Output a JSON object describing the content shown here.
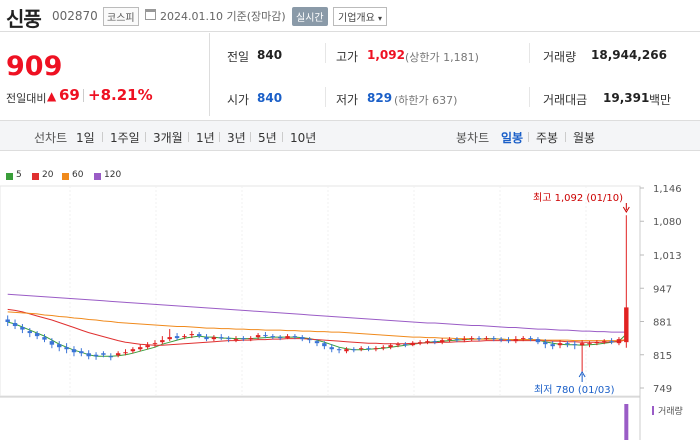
{
  "stock": {
    "name": "신풍",
    "code": "002870",
    "market": "코스피",
    "date_text": "2024.01.10 기준(장마감)",
    "realtime_label": "실시간",
    "overview_label": "기업개요",
    "price": "909",
    "change_label": "전일대비",
    "change_value": "69",
    "change_pct": "+8.21%"
  },
  "stats": {
    "prev_label": "전일",
    "prev_value": "840",
    "open_label": "시가",
    "open_value": "840",
    "high_label": "고가",
    "high_value": "1,092",
    "upper_limit": "(상한가 1,181)",
    "low_label": "저가",
    "low_value": "829",
    "lower_limit": "(하한가 637)",
    "volume_label": "거래량",
    "volume_value": "18,944,266",
    "amount_label": "거래대금",
    "amount_value": "19,391",
    "amount_unit": "백만"
  },
  "periods": {
    "line_label": "선차트",
    "line_items": [
      "1일",
      "1주일",
      "3개월",
      "1년",
      "3년",
      "5년",
      "10년"
    ],
    "candle_label": "봉차트",
    "candle_items": [
      "일봉",
      "주봉",
      "월봉"
    ],
    "active_candle": "일봉"
  },
  "legend": [
    {
      "label": "5",
      "color": "#3a9e3a"
    },
    {
      "label": "20",
      "color": "#e03030"
    },
    {
      "label": "60",
      "color": "#f08a1c"
    },
    {
      "label": "120",
      "color": "#9a5cc6"
    }
  ],
  "colors": {
    "up": "#e12222",
    "down": "#3a74d6"
  },
  "chart_data": {
    "type": "candlestick",
    "y_ticks": [
      "1,146",
      "1,080",
      "1,013",
      "947",
      "881",
      "815",
      "749"
    ],
    "ylim": [
      749,
      1146
    ],
    "high_annotation": "최고 1,092 (01/10)",
    "low_annotation": "최저 780 (01/03)",
    "volume_label": "거래량",
    "candles": [
      [
        885,
        880,
        872,
        893
      ],
      [
        878,
        872,
        866,
        885
      ],
      [
        870,
        865,
        858,
        876
      ],
      [
        862,
        858,
        850,
        868
      ],
      [
        858,
        852,
        846,
        862
      ],
      [
        850,
        845,
        840,
        856
      ],
      [
        842,
        835,
        828,
        848
      ],
      [
        836,
        830,
        822,
        842
      ],
      [
        830,
        826,
        818,
        838
      ],
      [
        826,
        820,
        812,
        832
      ],
      [
        822,
        818,
        812,
        828
      ],
      [
        818,
        812,
        806,
        824
      ],
      [
        815,
        812,
        805,
        820
      ],
      [
        818,
        815,
        810,
        822
      ],
      [
        812,
        810,
        804,
        818
      ],
      [
        814,
        818,
        810,
        822
      ],
      [
        818,
        820,
        814,
        826
      ],
      [
        822,
        826,
        818,
        830
      ],
      [
        826,
        830,
        822,
        836
      ],
      [
        830,
        834,
        826,
        840
      ],
      [
        836,
        838,
        830,
        844
      ],
      [
        840,
        844,
        836,
        852
      ],
      [
        846,
        850,
        842,
        866
      ],
      [
        852,
        848,
        844,
        858
      ],
      [
        850,
        852,
        846,
        856
      ],
      [
        854,
        856,
        848,
        862
      ],
      [
        856,
        852,
        848,
        860
      ],
      [
        850,
        846,
        842,
        856
      ],
      [
        846,
        850,
        842,
        854
      ],
      [
        850,
        848,
        844,
        856
      ],
      [
        848,
        846,
        840,
        852
      ],
      [
        844,
        846,
        840,
        852
      ],
      [
        848,
        846,
        842,
        852
      ],
      [
        846,
        848,
        842,
        852
      ],
      [
        850,
        854,
        846,
        858
      ],
      [
        854,
        852,
        848,
        860
      ],
      [
        852,
        850,
        846,
        856
      ],
      [
        850,
        848,
        844,
        854
      ],
      [
        848,
        852,
        846,
        856
      ],
      [
        852,
        850,
        846,
        856
      ],
      [
        850,
        846,
        842,
        854
      ],
      [
        846,
        844,
        838,
        850
      ],
      [
        842,
        838,
        832,
        846
      ],
      [
        838,
        832,
        826,
        842
      ],
      [
        830,
        826,
        820,
        836
      ],
      [
        826,
        824,
        818,
        830
      ],
      [
        822,
        826,
        818,
        830
      ],
      [
        826,
        824,
        820,
        830
      ],
      [
        826,
        828,
        822,
        832
      ],
      [
        828,
        826,
        822,
        832
      ],
      [
        826,
        828,
        822,
        832
      ],
      [
        828,
        830,
        824,
        834
      ],
      [
        830,
        834,
        826,
        838
      ],
      [
        834,
        836,
        830,
        840
      ],
      [
        836,
        834,
        830,
        840
      ],
      [
        834,
        838,
        832,
        842
      ],
      [
        838,
        840,
        834,
        844
      ],
      [
        840,
        842,
        836,
        846
      ],
      [
        842,
        840,
        836,
        846
      ],
      [
        840,
        844,
        836,
        848
      ],
      [
        844,
        846,
        840,
        850
      ],
      [
        846,
        844,
        840,
        850
      ],
      [
        844,
        846,
        840,
        852
      ],
      [
        846,
        848,
        842,
        852
      ],
      [
        848,
        846,
        842,
        852
      ],
      [
        846,
        848,
        844,
        852
      ],
      [
        848,
        846,
        842,
        852
      ],
      [
        846,
        844,
        840,
        850
      ],
      [
        844,
        842,
        838,
        850
      ],
      [
        842,
        846,
        838,
        852
      ],
      [
        846,
        848,
        842,
        852
      ],
      [
        848,
        846,
        842,
        852
      ],
      [
        846,
        840,
        836,
        850
      ],
      [
        840,
        836,
        828,
        846
      ],
      [
        836,
        832,
        826,
        842
      ],
      [
        834,
        838,
        828,
        844
      ],
      [
        838,
        836,
        830,
        842
      ],
      [
        836,
        834,
        826,
        842
      ],
      [
        834,
        838,
        780,
        844
      ],
      [
        836,
        838,
        830,
        842
      ],
      [
        838,
        840,
        834,
        844
      ],
      [
        840,
        842,
        836,
        846
      ],
      [
        842,
        840,
        836,
        848
      ],
      [
        838,
        846,
        834,
        850
      ],
      [
        840,
        909,
        829,
        1092
      ]
    ],
    "ma": {
      "5": [
        880,
        876,
        870,
        864,
        858,
        852,
        844,
        836,
        830,
        824,
        820,
        815,
        812,
        812,
        812,
        813,
        815,
        818,
        822,
        826,
        830,
        836,
        840,
        844,
        848,
        850,
        852,
        850,
        850,
        848,
        848,
        847,
        847,
        847,
        848,
        849,
        850,
        850,
        850,
        850,
        849,
        847,
        844,
        840,
        835,
        830,
        827,
        825,
        825,
        826,
        827,
        828,
        830,
        832,
        834,
        836,
        838,
        840,
        841,
        842,
        843,
        844,
        845,
        846,
        846,
        847,
        847,
        846,
        845,
        845,
        845,
        845,
        844,
        841,
        838,
        836,
        835,
        835,
        834,
        835,
        836,
        838,
        840,
        842,
        856
      ],
      "20": [
        905,
        903,
        900,
        896,
        892,
        888,
        884,
        879,
        874,
        869,
        864,
        859,
        855,
        851,
        847,
        843,
        840,
        838,
        836,
        835,
        834,
        834,
        835,
        836,
        837,
        838,
        839,
        840,
        841,
        842,
        843,
        843,
        844,
        844,
        845,
        845,
        846,
        846,
        847,
        847,
        847,
        846,
        845,
        844,
        843,
        842,
        841,
        840,
        839,
        838,
        838,
        837,
        837,
        837,
        837,
        838,
        838,
        839,
        839,
        840,
        840,
        841,
        841,
        842,
        842,
        843,
        843,
        843,
        843,
        843,
        843,
        843,
        843,
        843,
        842,
        842,
        841,
        841,
        840,
        840,
        840,
        840,
        841,
        841,
        845
      ],
      "60": [
        900,
        899,
        898,
        897,
        896,
        894,
        893,
        891,
        890,
        888,
        887,
        885,
        884,
        882,
        881,
        879,
        878,
        877,
        876,
        875,
        874,
        873,
        872,
        871,
        871,
        870,
        869,
        868,
        868,
        867,
        867,
        866,
        866,
        865,
        865,
        864,
        864,
        864,
        863,
        863,
        862,
        862,
        861,
        861,
        860,
        860,
        859,
        858,
        857,
        856,
        855,
        854,
        853,
        852,
        851,
        850,
        850,
        849,
        849,
        848,
        848,
        847,
        847,
        847,
        846,
        846,
        846,
        846,
        845,
        845,
        845,
        845,
        845,
        844,
        844,
        844,
        844,
        843,
        843,
        843,
        843,
        843,
        843,
        843,
        845
      ],
      "120": [
        935,
        934,
        933,
        932,
        931,
        930,
        929,
        928,
        927,
        926,
        925,
        924,
        923,
        922,
        921,
        920,
        919,
        918,
        917,
        916,
        915,
        914,
        913,
        912,
        911,
        910,
        909,
        908,
        907,
        906,
        905,
        904,
        903,
        902,
        901,
        900,
        899,
        898,
        897,
        896,
        895,
        894,
        893,
        892,
        891,
        890,
        889,
        888,
        887,
        886,
        885,
        884,
        883,
        882,
        881,
        880,
        879,
        878,
        878,
        877,
        876,
        875,
        874,
        873,
        873,
        872,
        871,
        870,
        869,
        869,
        868,
        867,
        866,
        866,
        865,
        864,
        864,
        863,
        862,
        862,
        861,
        861,
        860,
        860,
        860
      ]
    },
    "volume_last": 1.0
  }
}
